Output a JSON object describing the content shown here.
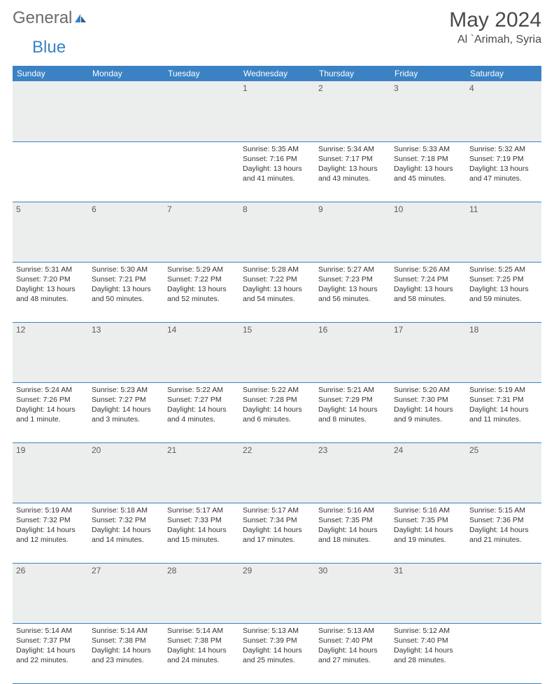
{
  "logo": {
    "text1": "General",
    "text2": "Blue"
  },
  "title": "May 2024",
  "location": "Al `Arimah, Syria",
  "colors": {
    "header_bg": "#3b82c4",
    "header_fg": "#ffffff",
    "daynum_bg": "#eceded",
    "daynum_fg": "#5a5a5a",
    "cell_text": "#333333",
    "border": "#3b82c4",
    "logo_gray": "#6b6b6b",
    "logo_blue": "#3b82c4",
    "title_color": "#4a4a4a"
  },
  "weekdays": [
    "Sunday",
    "Monday",
    "Tuesday",
    "Wednesday",
    "Thursday",
    "Friday",
    "Saturday"
  ],
  "weeks": [
    [
      {
        "num": "",
        "sunrise": "",
        "sunset": "",
        "daylight": ""
      },
      {
        "num": "",
        "sunrise": "",
        "sunset": "",
        "daylight": ""
      },
      {
        "num": "",
        "sunrise": "",
        "sunset": "",
        "daylight": ""
      },
      {
        "num": "1",
        "sunrise": "Sunrise: 5:35 AM",
        "sunset": "Sunset: 7:16 PM",
        "daylight": "Daylight: 13 hours and 41 minutes."
      },
      {
        "num": "2",
        "sunrise": "Sunrise: 5:34 AM",
        "sunset": "Sunset: 7:17 PM",
        "daylight": "Daylight: 13 hours and 43 minutes."
      },
      {
        "num": "3",
        "sunrise": "Sunrise: 5:33 AM",
        "sunset": "Sunset: 7:18 PM",
        "daylight": "Daylight: 13 hours and 45 minutes."
      },
      {
        "num": "4",
        "sunrise": "Sunrise: 5:32 AM",
        "sunset": "Sunset: 7:19 PM",
        "daylight": "Daylight: 13 hours and 47 minutes."
      }
    ],
    [
      {
        "num": "5",
        "sunrise": "Sunrise: 5:31 AM",
        "sunset": "Sunset: 7:20 PM",
        "daylight": "Daylight: 13 hours and 48 minutes."
      },
      {
        "num": "6",
        "sunrise": "Sunrise: 5:30 AM",
        "sunset": "Sunset: 7:21 PM",
        "daylight": "Daylight: 13 hours and 50 minutes."
      },
      {
        "num": "7",
        "sunrise": "Sunrise: 5:29 AM",
        "sunset": "Sunset: 7:22 PM",
        "daylight": "Daylight: 13 hours and 52 minutes."
      },
      {
        "num": "8",
        "sunrise": "Sunrise: 5:28 AM",
        "sunset": "Sunset: 7:22 PM",
        "daylight": "Daylight: 13 hours and 54 minutes."
      },
      {
        "num": "9",
        "sunrise": "Sunrise: 5:27 AM",
        "sunset": "Sunset: 7:23 PM",
        "daylight": "Daylight: 13 hours and 56 minutes."
      },
      {
        "num": "10",
        "sunrise": "Sunrise: 5:26 AM",
        "sunset": "Sunset: 7:24 PM",
        "daylight": "Daylight: 13 hours and 58 minutes."
      },
      {
        "num": "11",
        "sunrise": "Sunrise: 5:25 AM",
        "sunset": "Sunset: 7:25 PM",
        "daylight": "Daylight: 13 hours and 59 minutes."
      }
    ],
    [
      {
        "num": "12",
        "sunrise": "Sunrise: 5:24 AM",
        "sunset": "Sunset: 7:26 PM",
        "daylight": "Daylight: 14 hours and 1 minute."
      },
      {
        "num": "13",
        "sunrise": "Sunrise: 5:23 AM",
        "sunset": "Sunset: 7:27 PM",
        "daylight": "Daylight: 14 hours and 3 minutes."
      },
      {
        "num": "14",
        "sunrise": "Sunrise: 5:22 AM",
        "sunset": "Sunset: 7:27 PM",
        "daylight": "Daylight: 14 hours and 4 minutes."
      },
      {
        "num": "15",
        "sunrise": "Sunrise: 5:22 AM",
        "sunset": "Sunset: 7:28 PM",
        "daylight": "Daylight: 14 hours and 6 minutes."
      },
      {
        "num": "16",
        "sunrise": "Sunrise: 5:21 AM",
        "sunset": "Sunset: 7:29 PM",
        "daylight": "Daylight: 14 hours and 8 minutes."
      },
      {
        "num": "17",
        "sunrise": "Sunrise: 5:20 AM",
        "sunset": "Sunset: 7:30 PM",
        "daylight": "Daylight: 14 hours and 9 minutes."
      },
      {
        "num": "18",
        "sunrise": "Sunrise: 5:19 AM",
        "sunset": "Sunset: 7:31 PM",
        "daylight": "Daylight: 14 hours and 11 minutes."
      }
    ],
    [
      {
        "num": "19",
        "sunrise": "Sunrise: 5:19 AM",
        "sunset": "Sunset: 7:32 PM",
        "daylight": "Daylight: 14 hours and 12 minutes."
      },
      {
        "num": "20",
        "sunrise": "Sunrise: 5:18 AM",
        "sunset": "Sunset: 7:32 PM",
        "daylight": "Daylight: 14 hours and 14 minutes."
      },
      {
        "num": "21",
        "sunrise": "Sunrise: 5:17 AM",
        "sunset": "Sunset: 7:33 PM",
        "daylight": "Daylight: 14 hours and 15 minutes."
      },
      {
        "num": "22",
        "sunrise": "Sunrise: 5:17 AM",
        "sunset": "Sunset: 7:34 PM",
        "daylight": "Daylight: 14 hours and 17 minutes."
      },
      {
        "num": "23",
        "sunrise": "Sunrise: 5:16 AM",
        "sunset": "Sunset: 7:35 PM",
        "daylight": "Daylight: 14 hours and 18 minutes."
      },
      {
        "num": "24",
        "sunrise": "Sunrise: 5:16 AM",
        "sunset": "Sunset: 7:35 PM",
        "daylight": "Daylight: 14 hours and 19 minutes."
      },
      {
        "num": "25",
        "sunrise": "Sunrise: 5:15 AM",
        "sunset": "Sunset: 7:36 PM",
        "daylight": "Daylight: 14 hours and 21 minutes."
      }
    ],
    [
      {
        "num": "26",
        "sunrise": "Sunrise: 5:14 AM",
        "sunset": "Sunset: 7:37 PM",
        "daylight": "Daylight: 14 hours and 22 minutes."
      },
      {
        "num": "27",
        "sunrise": "Sunrise: 5:14 AM",
        "sunset": "Sunset: 7:38 PM",
        "daylight": "Daylight: 14 hours and 23 minutes."
      },
      {
        "num": "28",
        "sunrise": "Sunrise: 5:14 AM",
        "sunset": "Sunset: 7:38 PM",
        "daylight": "Daylight: 14 hours and 24 minutes."
      },
      {
        "num": "29",
        "sunrise": "Sunrise: 5:13 AM",
        "sunset": "Sunset: 7:39 PM",
        "daylight": "Daylight: 14 hours and 25 minutes."
      },
      {
        "num": "30",
        "sunrise": "Sunrise: 5:13 AM",
        "sunset": "Sunset: 7:40 PM",
        "daylight": "Daylight: 14 hours and 27 minutes."
      },
      {
        "num": "31",
        "sunrise": "Sunrise: 5:12 AM",
        "sunset": "Sunset: 7:40 PM",
        "daylight": "Daylight: 14 hours and 28 minutes."
      },
      {
        "num": "",
        "sunrise": "",
        "sunset": "",
        "daylight": ""
      }
    ]
  ]
}
